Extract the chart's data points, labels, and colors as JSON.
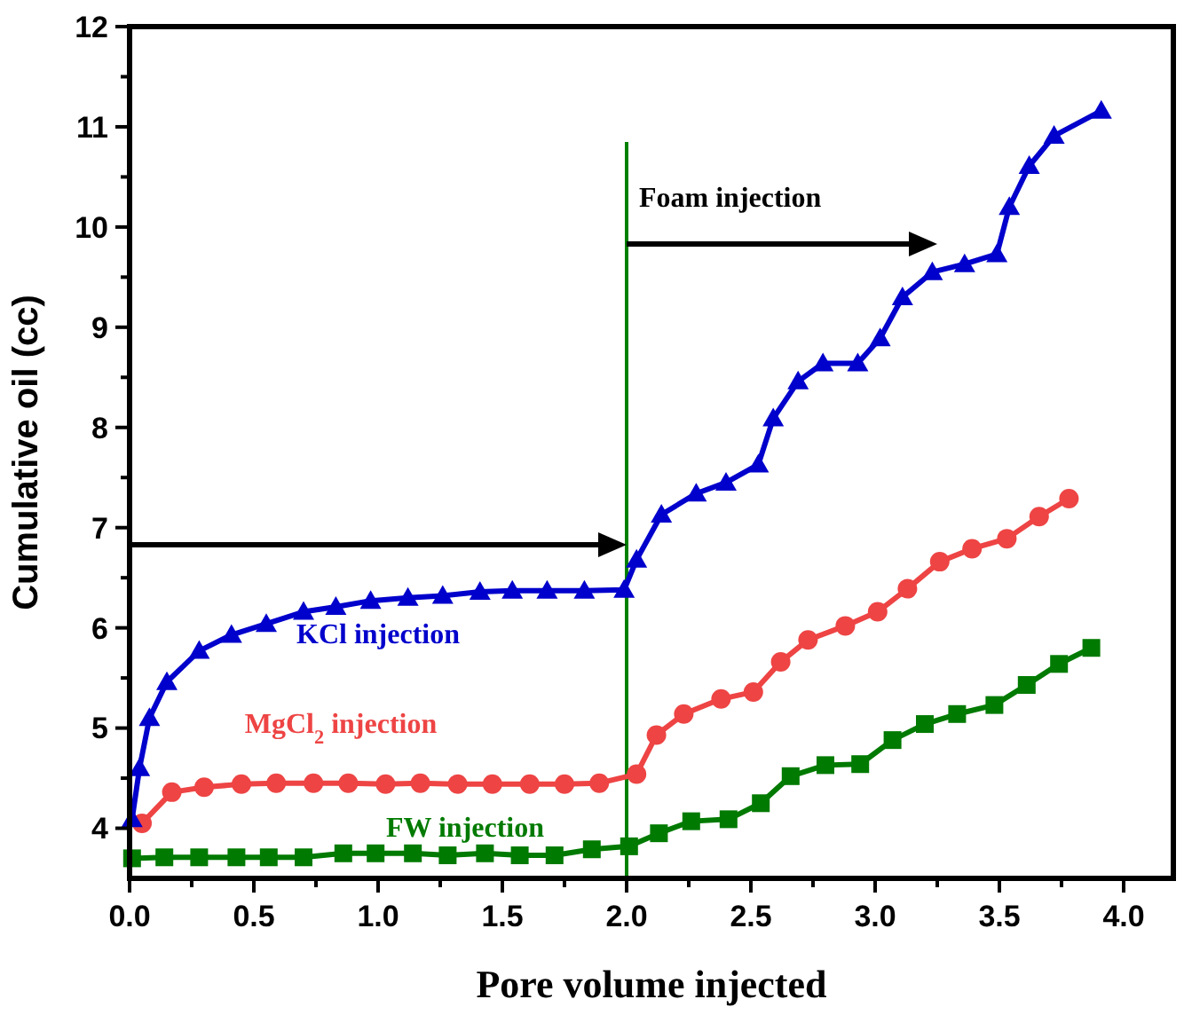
{
  "chart_data": {
    "type": "line",
    "xlabel": "Pore volume injected",
    "ylabel": "Cumulative oil (cc)",
    "xlim": [
      0,
      4.2
    ],
    "ylim": [
      3.5,
      12
    ],
    "xticks": [
      {
        "value": 0,
        "label": "0.0"
      },
      {
        "value": 0.25,
        "label": null
      },
      {
        "value": 0.5,
        "label": "0.5"
      },
      {
        "value": 0.75,
        "label": null
      },
      {
        "value": 1,
        "label": "1.0"
      },
      {
        "value": 1.25,
        "label": null
      },
      {
        "value": 1.5,
        "label": "1.5"
      },
      {
        "value": 1.75,
        "label": null
      },
      {
        "value": 2,
        "label": "2.0"
      },
      {
        "value": 2.25,
        "label": null
      },
      {
        "value": 2.5,
        "label": "2.5"
      },
      {
        "value": 2.75,
        "label": null
      },
      {
        "value": 3,
        "label": "3.0"
      },
      {
        "value": 3.25,
        "label": null
      },
      {
        "value": 3.5,
        "label": "3.5"
      },
      {
        "value": 3.75,
        "label": null
      },
      {
        "value": 4,
        "label": "4.0"
      }
    ],
    "yticks": [
      4,
      {
        "value": 4.5,
        "label": null
      },
      5,
      {
        "value": 5.5,
        "label": null
      },
      6,
      {
        "value": 6.5,
        "label": null
      },
      7,
      {
        "value": 7.5,
        "label": null
      },
      8,
      {
        "value": 8.5,
        "label": null
      },
      9,
      {
        "value": 9.5,
        "label": null
      },
      10,
      {
        "value": 10.5,
        "label": null
      },
      11,
      {
        "value": 11.5,
        "label": null
      },
      12
    ],
    "grid": false,
    "line_style": "solid",
    "series": [
      {
        "name": "KCl injection",
        "color": "#0000cc",
        "marker": "triangle",
        "x": [
          0.01,
          0.04,
          0.08,
          0.15,
          0.28,
          0.41,
          0.55,
          0.7,
          0.83,
          0.97,
          1.12,
          1.26,
          1.41,
          1.54,
          1.68,
          1.83,
          1.99,
          2.04,
          2.14,
          2.28,
          2.4,
          2.53,
          2.59,
          2.69,
          2.79,
          2.93,
          3.02,
          3.11,
          3.23,
          3.36,
          3.49,
          3.54,
          3.62,
          3.72,
          3.91
        ],
        "values": [
          4.09,
          4.6,
          5.1,
          5.46,
          5.77,
          5.93,
          6.04,
          6.16,
          6.21,
          6.27,
          6.3,
          6.32,
          6.36,
          6.37,
          6.37,
          6.37,
          6.38,
          6.68,
          7.13,
          7.34,
          7.45,
          7.63,
          8.09,
          8.46,
          8.64,
          8.64,
          8.89,
          9.3,
          9.55,
          9.63,
          9.73,
          10.2,
          10.61,
          10.91,
          11.16
        ]
      },
      {
        "name": "MgCl$_{2}$ injection",
        "color": "#ee4444",
        "marker": "circle",
        "x": [
          0.05,
          0.17,
          0.3,
          0.45,
          0.59,
          0.74,
          0.88,
          1.03,
          1.17,
          1.32,
          1.46,
          1.61,
          1.75,
          1.89,
          2.04,
          2.12,
          2.23,
          2.38,
          2.51,
          2.62,
          2.73,
          2.88,
          3.01,
          3.13,
          3.26,
          3.39,
          3.53,
          3.66,
          3.78
        ],
        "values": [
          4.05,
          4.36,
          4.41,
          4.44,
          4.45,
          4.45,
          4.45,
          4.44,
          4.45,
          4.44,
          4.44,
          4.44,
          4.44,
          4.45,
          4.54,
          4.93,
          5.14,
          5.29,
          5.36,
          5.66,
          5.88,
          6.02,
          6.16,
          6.39,
          6.66,
          6.79,
          6.89,
          7.11,
          7.29
        ]
      },
      {
        "name": "FW injection",
        "color": "#007a00",
        "marker": "square",
        "x": [
          0.01,
          0.14,
          0.28,
          0.43,
          0.56,
          0.7,
          0.86,
          0.99,
          1.14,
          1.28,
          1.43,
          1.57,
          1.71,
          1.86,
          2.01,
          2.13,
          2.26,
          2.41,
          2.54,
          2.66,
          2.8,
          2.94,
          3.07,
          3.2,
          3.33,
          3.48,
          3.61,
          3.74,
          3.87
        ],
        "values": [
          3.7,
          3.71,
          3.71,
          3.71,
          3.71,
          3.71,
          3.75,
          3.75,
          3.75,
          3.73,
          3.75,
          3.73,
          3.73,
          3.79,
          3.82,
          3.95,
          4.07,
          4.09,
          4.25,
          4.52,
          4.63,
          4.64,
          4.88,
          5.04,
          5.14,
          5.23,
          5.43,
          5.64,
          5.8
        ]
      }
    ],
    "ref_lines": [
      {
        "axis": "x",
        "value": 2,
        "color": "#008000"
      }
    ],
    "annotations": [
      "Foam injection"
    ]
  }
}
